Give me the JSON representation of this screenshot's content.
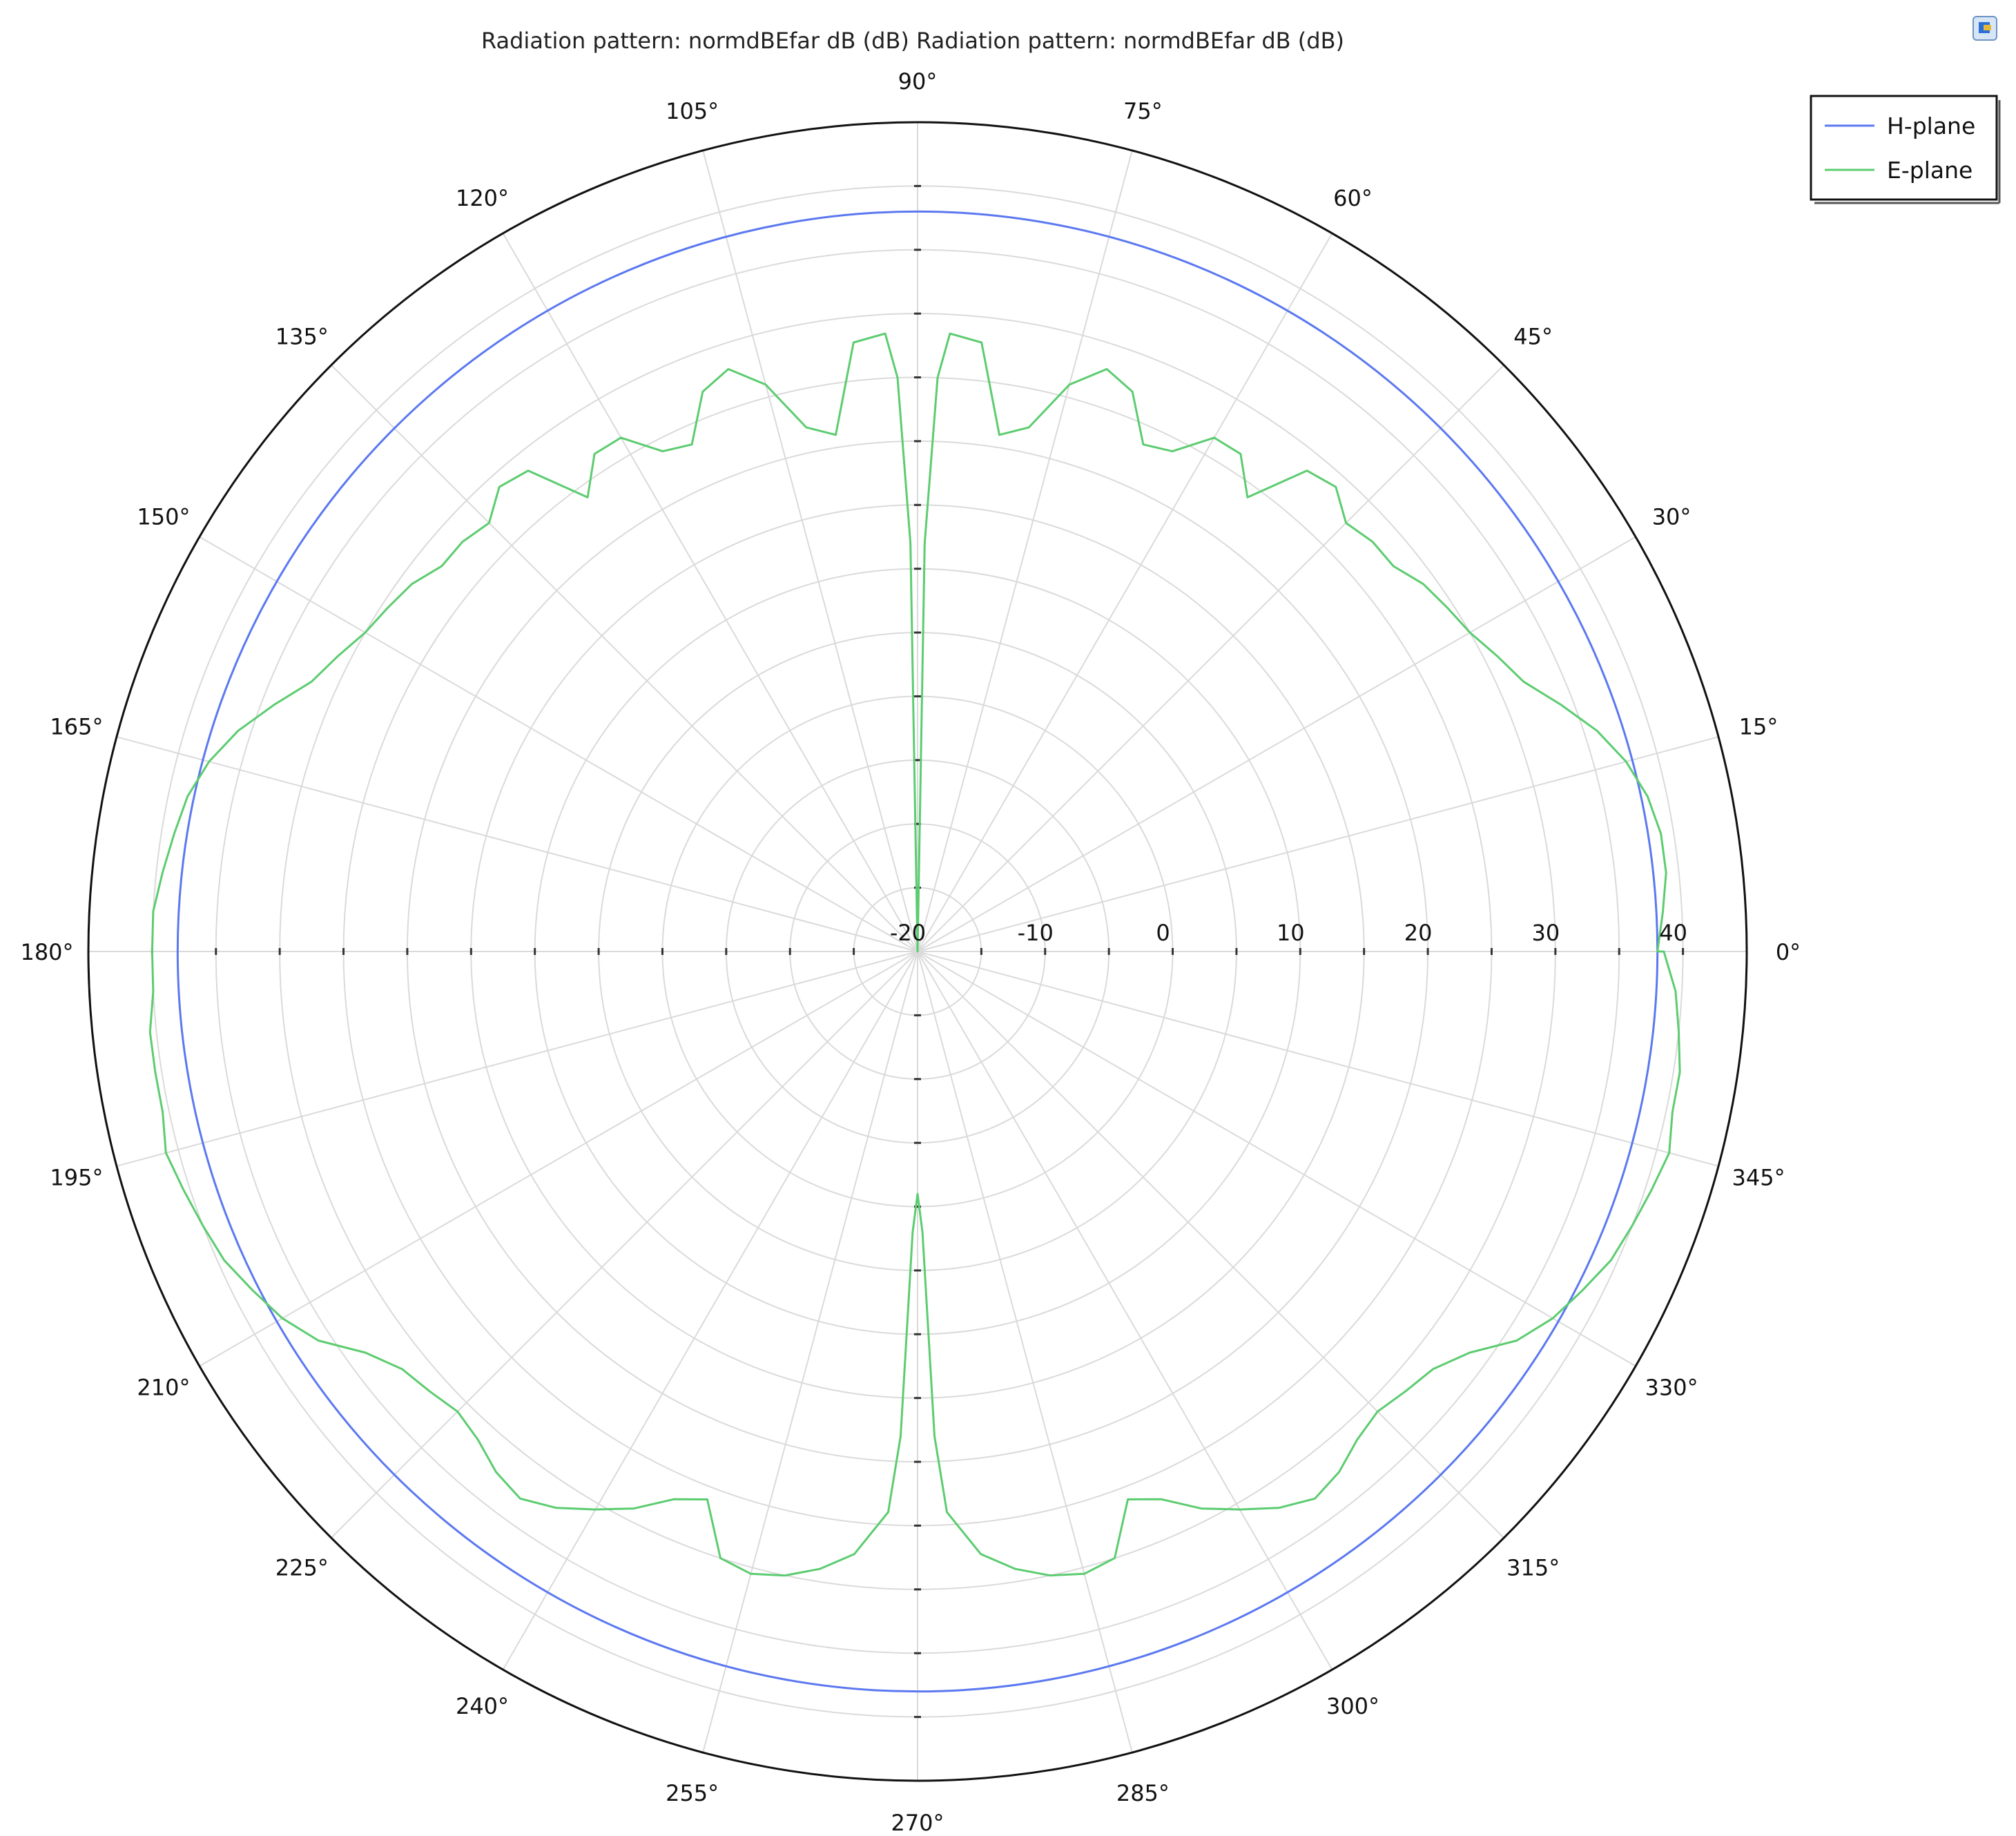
{
  "chart_data": {
    "type": "polar-line",
    "title": "Radiation pattern: normdBEfar dB (dB) Radiation pattern: normdBEfar dB (dB)",
    "radial_axis": {
      "range": [
        -20,
        45
      ],
      "ticks": [
        -20,
        -10,
        0,
        10,
        20,
        30,
        40
      ],
      "tick_labels": [
        "-20",
        "-10",
        "0",
        "10",
        "20",
        "30",
        "40"
      ]
    },
    "angular_axis": {
      "step_deg": 15,
      "tick_labels": [
        "0°",
        "15°",
        "30°",
        "45°",
        "60°",
        "75°",
        "90°",
        "105°",
        "120°",
        "135°",
        "150°",
        "165°",
        "180°",
        "195°",
        "210°",
        "225°",
        "240°",
        "255°",
        "270°",
        "285°",
        "300°",
        "315°",
        "330°",
        "345°"
      ]
    },
    "grid": true,
    "legend_position": "top-right",
    "series": [
      {
        "name": "H-plane",
        "color": "#5b78f0",
        "theta_deg": [
          0,
          90,
          180,
          270,
          360
        ],
        "r": [
          38,
          38,
          38,
          38,
          38
        ]
      },
      {
        "name": "E-plane",
        "color": "#5ccc70",
        "theta_deg": [
          0,
          3,
          6,
          9,
          12,
          15,
          18,
          21,
          24,
          27,
          30,
          33,
          36,
          39,
          42,
          45,
          48,
          51,
          54,
          57,
          60,
          63,
          66,
          69,
          72,
          75,
          78,
          81,
          84,
          87,
          88,
          89,
          90,
          91,
          92,
          93,
          96,
          99,
          102,
          105,
          108,
          111,
          114,
          117,
          120,
          123,
          126,
          129,
          132,
          135,
          138,
          141,
          144,
          147,
          150,
          153,
          156,
          159,
          162,
          165,
          168,
          171,
          174,
          177,
          180,
          183,
          186,
          189,
          192,
          195,
          198,
          201,
          204,
          207,
          210,
          213,
          216,
          219,
          222,
          225,
          228,
          231,
          234,
          237,
          240,
          243,
          246,
          249,
          252,
          255,
          258,
          261,
          264,
          267,
          268,
          269,
          270,
          271,
          272,
          273,
          276,
          279,
          282,
          285,
          288,
          291,
          294,
          297,
          300,
          303,
          306,
          309,
          312,
          315,
          318,
          321,
          324,
          327,
          330,
          333,
          336,
          339,
          342,
          345,
          348,
          351,
          354,
          357,
          360
        ],
        "r": [
          38,
          38.5,
          39,
          39,
          38.5,
          37.5,
          36,
          34,
          32,
          31,
          30,
          29.5,
          29,
          28,
          28,
          27.5,
          29,
          28.5,
          24,
          26.5,
          26.5,
          24,
          23.5,
          27,
          28,
          26,
          22,
          21,
          28,
          28.5,
          25,
          12,
          -20,
          12,
          25,
          28.5,
          28,
          21,
          22,
          26,
          28,
          27,
          23.5,
          24,
          26.5,
          26.5,
          24,
          28.5,
          29,
          27.5,
          28,
          28,
          29,
          29.5,
          30,
          31,
          32,
          34,
          36,
          37.5,
          38.5,
          39,
          39.5,
          40,
          40,
          40,
          40.5,
          40.5,
          40.5,
          41,
          40.5,
          40,
          39.5,
          38.5,
          37.5,
          36,
          33.5,
          32,
          31.5,
          31,
          31.5,
          32.5,
          33,
          32,
          30.5,
          29,
          27,
          26,
          30,
          30.5,
          30,
          29,
          27.5,
          24,
          18,
          2,
          -1,
          2,
          18,
          24,
          27.5,
          29,
          30,
          30.5,
          30,
          26,
          27,
          29,
          30.5,
          32,
          33,
          32.5,
          31.5,
          31,
          31.5,
          32,
          33.5,
          36,
          37.5,
          38.5,
          39.5,
          40,
          40.5,
          41,
          40.5,
          40.5,
          40,
          39.5,
          38.5,
          38
        ]
      }
    ]
  },
  "toolbar": {
    "icon": "window-restore-icon"
  }
}
